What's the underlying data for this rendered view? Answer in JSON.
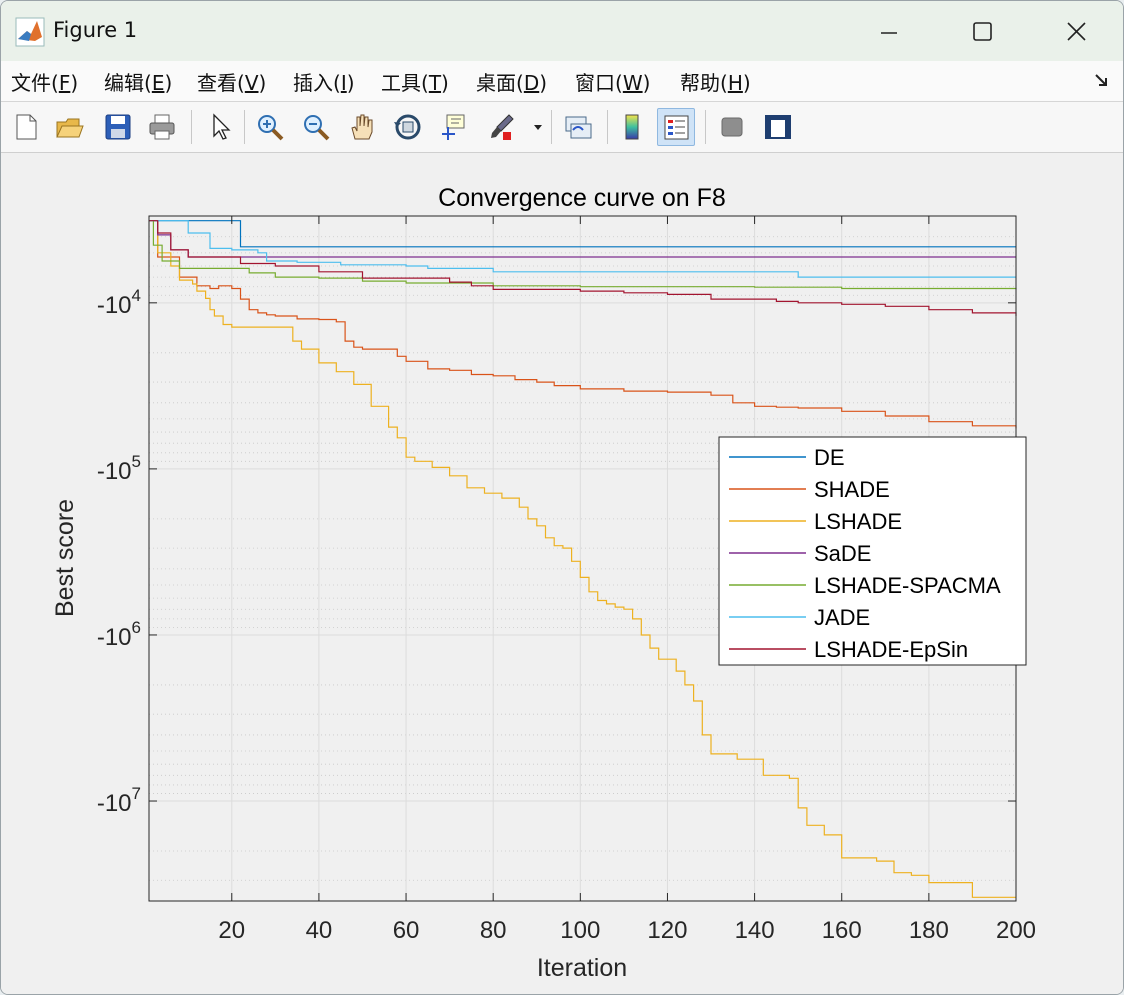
{
  "window": {
    "title": "Figure 1",
    "controls": [
      "minimize",
      "maximize",
      "close"
    ]
  },
  "menu": [
    {
      "label": "文件",
      "key": "F"
    },
    {
      "label": "编辑",
      "key": "E"
    },
    {
      "label": "查看",
      "key": "V"
    },
    {
      "label": "插入",
      "key": "I"
    },
    {
      "label": "工具",
      "key": "T"
    },
    {
      "label": "桌面",
      "key": "D"
    },
    {
      "label": "窗口",
      "key": "W"
    },
    {
      "label": "帮助",
      "key": "H"
    }
  ],
  "toolbar": {
    "icons": [
      "new-figure-icon",
      "open-file-icon",
      "save-icon",
      "print-icon",
      "select-arrow-icon",
      "zoom-in-icon",
      "zoom-out-icon",
      "pan-hand-icon",
      "rotate-3d-icon",
      "data-cursor-icon",
      "brush-icon",
      "brush-dropdown-icon",
      "link-plot-icon",
      "colorbar-icon",
      "legend-icon",
      "hide-plot-tools-icon",
      "show-plot-tools-icon"
    ],
    "active": "legend-icon"
  },
  "chart_data": {
    "type": "line",
    "title": "Convergence curve on F8",
    "xlabel": "Iteration",
    "ylabel": "Best score",
    "xlim": [
      1,
      200
    ],
    "xticks": [
      20,
      40,
      60,
      80,
      100,
      120,
      140,
      160,
      180,
      200
    ],
    "y_scale": "log (negative values, magnitude increases downward)",
    "ylim_magnitude": [
      3000,
      40000000
    ],
    "yticks": [
      {
        "base": "-10",
        "exp": "4",
        "value": -10000
      },
      {
        "base": "-10",
        "exp": "5",
        "value": -100000
      },
      {
        "base": "-10",
        "exp": "6",
        "value": -1000000
      },
      {
        "base": "-10",
        "exp": "7",
        "value": -10000000
      }
    ],
    "grid": true,
    "minor_grid": true,
    "legend": {
      "location": "right"
    },
    "series": [
      {
        "name": "DE",
        "color": "#0072BD",
        "points": [
          [
            1,
            3200
          ],
          [
            20,
            3200
          ],
          [
            22,
            4600
          ],
          [
            200,
            4600
          ]
        ]
      },
      {
        "name": "SHADE",
        "color": "#D95319",
        "points": [
          [
            1,
            3200
          ],
          [
            3,
            5300
          ],
          [
            8,
            7000
          ],
          [
            12,
            7900
          ],
          [
            15,
            8200
          ],
          [
            17,
            7900
          ],
          [
            20,
            8200
          ],
          [
            22,
            9500
          ],
          [
            24,
            11000
          ],
          [
            26,
            11500
          ],
          [
            28,
            11800
          ],
          [
            30,
            12000
          ],
          [
            35,
            12500
          ],
          [
            40,
            12600
          ],
          [
            44,
            13000
          ],
          [
            46,
            17000
          ],
          [
            48,
            18500
          ],
          [
            50,
            19000
          ],
          [
            56,
            19000
          ],
          [
            58,
            21000
          ],
          [
            60,
            22500
          ],
          [
            65,
            25000
          ],
          [
            70,
            25500
          ],
          [
            75,
            27000
          ],
          [
            80,
            27500
          ],
          [
            85,
            29000
          ],
          [
            90,
            30000
          ],
          [
            94,
            31500
          ],
          [
            100,
            33000
          ],
          [
            110,
            34000
          ],
          [
            120,
            34500
          ],
          [
            130,
            36000
          ],
          [
            135,
            40000
          ],
          [
            140,
            42000
          ],
          [
            145,
            42500
          ],
          [
            150,
            43000
          ],
          [
            160,
            45000
          ],
          [
            170,
            48000
          ],
          [
            180,
            52000
          ],
          [
            190,
            55000
          ],
          [
            200,
            57000
          ]
        ]
      },
      {
        "name": "LSHADE",
        "color": "#EDB120",
        "points": [
          [
            1,
            3200
          ],
          [
            3,
            5000
          ],
          [
            6,
            6000
          ],
          [
            8,
            7300
          ],
          [
            11,
            7700
          ],
          [
            12,
            8500
          ],
          [
            14,
            9400
          ],
          [
            15,
            11000
          ],
          [
            16,
            12000
          ],
          [
            18,
            13500
          ],
          [
            20,
            14000
          ],
          [
            30,
            14000
          ],
          [
            34,
            17000
          ],
          [
            36,
            19000
          ],
          [
            40,
            23000
          ],
          [
            44,
            26000
          ],
          [
            48,
            31000
          ],
          [
            52,
            42000
          ],
          [
            56,
            56000
          ],
          [
            58,
            65000
          ],
          [
            60,
            85000
          ],
          [
            62,
            90000
          ],
          [
            66,
            98000
          ],
          [
            70,
            110000
          ],
          [
            74,
            130000
          ],
          [
            78,
            140000
          ],
          [
            82,
            150000
          ],
          [
            86,
            170000
          ],
          [
            88,
            200000
          ],
          [
            90,
            220000
          ],
          [
            92,
            260000
          ],
          [
            94,
            290000
          ],
          [
            96,
            300000
          ],
          [
            98,
            360000
          ],
          [
            100,
            450000
          ],
          [
            102,
            550000
          ],
          [
            104,
            620000
          ],
          [
            106,
            650000
          ],
          [
            108,
            680000
          ],
          [
            110,
            700000
          ],
          [
            112,
            800000
          ],
          [
            114,
            1000000
          ],
          [
            116,
            1200000
          ],
          [
            118,
            1400000
          ],
          [
            122,
            1650000
          ],
          [
            124,
            2000000
          ],
          [
            126,
            2500000
          ],
          [
            128,
            4000000
          ],
          [
            130,
            5200000
          ],
          [
            134,
            5200000
          ],
          [
            136,
            5600000
          ],
          [
            140,
            5600000
          ],
          [
            142,
            7000000
          ],
          [
            148,
            7300000
          ],
          [
            150,
            11000000
          ],
          [
            152,
            14000000
          ],
          [
            156,
            16000000
          ],
          [
            160,
            22000000
          ],
          [
            166,
            22000000
          ],
          [
            168,
            23000000
          ],
          [
            172,
            27000000
          ],
          [
            176,
            28000000
          ],
          [
            180,
            31000000
          ],
          [
            186,
            31000000
          ],
          [
            190,
            38000000
          ],
          [
            200,
            38000000
          ]
        ]
      },
      {
        "name": "SaDE",
        "color": "#7E2F8E",
        "points": [
          [
            1,
            3200
          ],
          [
            3,
            3900
          ],
          [
            6,
            4800
          ],
          [
            10,
            5300
          ],
          [
            200,
            5300
          ]
        ]
      },
      {
        "name": "LSHADE-SPACMA",
        "color": "#77AC30",
        "points": [
          [
            1,
            3200
          ],
          [
            2,
            4500
          ],
          [
            4,
            5600
          ],
          [
            8,
            6200
          ],
          [
            20,
            6200
          ],
          [
            24,
            6600
          ],
          [
            30,
            7000
          ],
          [
            40,
            7100
          ],
          [
            50,
            7400
          ],
          [
            60,
            7600
          ],
          [
            80,
            7900
          ],
          [
            100,
            8000
          ],
          [
            120,
            8000
          ],
          [
            140,
            8050
          ],
          [
            160,
            8200
          ],
          [
            180,
            8200
          ],
          [
            200,
            8300
          ]
        ]
      },
      {
        "name": "JADE",
        "color": "#4DBEEE",
        "points": [
          [
            1,
            3200
          ],
          [
            10,
            3800
          ],
          [
            15,
            4700
          ],
          [
            20,
            4800
          ],
          [
            26,
            5000
          ],
          [
            28,
            5600
          ],
          [
            35,
            5700
          ],
          [
            45,
            5900
          ],
          [
            60,
            6000
          ],
          [
            65,
            6200
          ],
          [
            80,
            6500
          ],
          [
            100,
            6500
          ],
          [
            120,
            6500
          ],
          [
            148,
            6500
          ],
          [
            150,
            7000
          ],
          [
            160,
            7000
          ],
          [
            180,
            7000
          ],
          [
            200,
            7000
          ]
        ]
      },
      {
        "name": "LSHADE-EpSin",
        "color": "#A2142F",
        "points": [
          [
            1,
            3200
          ],
          [
            3,
            3800
          ],
          [
            6,
            4800
          ],
          [
            10,
            5300
          ],
          [
            20,
            5300
          ],
          [
            22,
            5800
          ],
          [
            30,
            6000
          ],
          [
            40,
            6500
          ],
          [
            50,
            7100
          ],
          [
            60,
            7100
          ],
          [
            70,
            7500
          ],
          [
            75,
            7900
          ],
          [
            80,
            8300
          ],
          [
            90,
            8300
          ],
          [
            100,
            8500
          ],
          [
            110,
            8700
          ],
          [
            120,
            8900
          ],
          [
            130,
            9500
          ],
          [
            140,
            9500
          ],
          [
            145,
            9800
          ],
          [
            150,
            10000
          ],
          [
            160,
            10200
          ],
          [
            170,
            10500
          ],
          [
            180,
            11000
          ],
          [
            190,
            11500
          ],
          [
            200,
            12000
          ]
        ]
      }
    ]
  }
}
